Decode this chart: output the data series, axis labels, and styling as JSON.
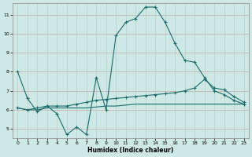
{
  "title": "",
  "xlabel": "Humidex (Indice chaleur)",
  "bg_color": "#cde8e5",
  "grid_color_major": "#c8b8b8",
  "grid_color_minor": "#b8d8d5",
  "line_color": "#1a6b6b",
  "xlim": [
    -0.5,
    23.5
  ],
  "ylim": [
    4.5,
    11.6
  ],
  "xticks": [
    0,
    1,
    2,
    3,
    4,
    5,
    6,
    7,
    8,
    9,
    10,
    11,
    12,
    13,
    14,
    15,
    16,
    17,
    18,
    19,
    20,
    21,
    22,
    23
  ],
  "yticks": [
    5,
    6,
    7,
    8,
    9,
    10,
    11
  ],
  "line1_x": [
    0,
    1,
    2,
    3,
    4,
    5,
    6,
    7,
    8,
    9,
    10,
    11,
    12,
    13,
    14,
    15,
    16,
    17,
    18,
    19,
    20,
    21,
    22,
    23
  ],
  "line1_y": [
    8.0,
    6.6,
    5.9,
    6.2,
    5.8,
    4.7,
    5.1,
    4.7,
    7.7,
    6.0,
    9.9,
    10.6,
    10.8,
    11.4,
    11.4,
    10.6,
    9.5,
    8.6,
    8.5,
    7.7,
    7.0,
    6.8,
    6.5,
    6.3
  ],
  "line2_x": [
    0,
    1,
    2,
    3,
    4,
    5,
    6,
    7,
    8,
    9,
    10,
    11,
    12,
    13,
    14,
    15,
    16,
    17,
    18,
    19,
    20,
    21,
    22,
    23
  ],
  "line2_y": [
    6.1,
    6.0,
    6.0,
    6.1,
    6.1,
    6.1,
    6.1,
    6.1,
    6.15,
    6.2,
    6.2,
    6.25,
    6.3,
    6.3,
    6.3,
    6.3,
    6.3,
    6.3,
    6.3,
    6.3,
    6.3,
    6.3,
    6.3,
    6.3
  ],
  "line3_x": [
    0,
    1,
    2,
    3,
    4,
    5,
    6,
    7,
    8,
    9,
    10,
    11,
    12,
    13,
    14,
    15,
    16,
    17,
    18,
    19,
    20,
    21,
    22,
    23
  ],
  "line3_y": [
    6.1,
    6.0,
    6.1,
    6.2,
    6.2,
    6.2,
    6.3,
    6.4,
    6.5,
    6.55,
    6.6,
    6.65,
    6.7,
    6.75,
    6.8,
    6.85,
    6.9,
    7.0,
    7.15,
    7.6,
    7.15,
    7.05,
    6.7,
    6.4
  ]
}
